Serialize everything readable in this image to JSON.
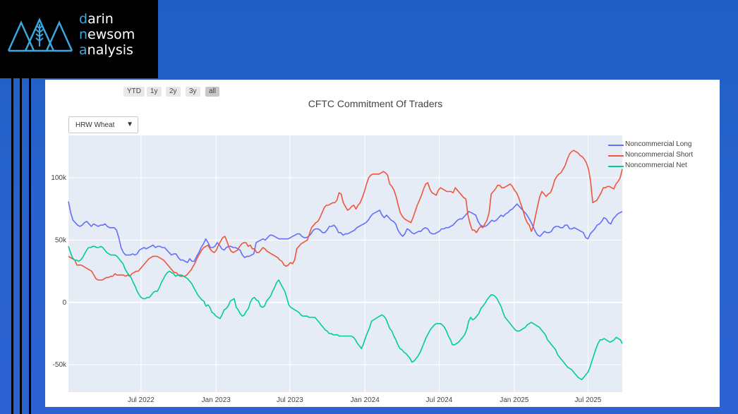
{
  "logo": {
    "line1_hl": "d",
    "line1": "arin",
    "line2_hl": "n",
    "line2": "ewsom",
    "line3_hl": "a",
    "line3": "nalysis"
  },
  "range_buttons": [
    "YTD",
    "1y",
    "2y",
    "3y",
    "all"
  ],
  "active_range": "all",
  "dropdown": {
    "selected": "HRW Wheat",
    "arrow": "▼"
  },
  "colors": {
    "long": "#636efa",
    "short": "#ef553b",
    "net": "#00cc96",
    "plot_bg": "#e5ecf6",
    "grid": "#ffffff"
  },
  "chart_data": {
    "type": "line",
    "title": "CFTC Commitment Of Traders",
    "x_tick_labels": [
      "Jul 2022",
      "Jan 2023",
      "Jul 2023",
      "Jan 2024",
      "Jul 2024",
      "Jan 2025",
      "Jul 2025"
    ],
    "y_tick_labels": [
      "100k",
      "50k",
      "0",
      "-50k"
    ],
    "y_ticks": [
      100000,
      50000,
      0,
      -50000
    ],
    "ylim": [
      -72000,
      134000
    ],
    "x_start": "2022-01-04",
    "x_end": "2025-09-23",
    "series": [
      {
        "name": "Noncommercial Long",
        "color": "#636efa",
        "values": [
          81000,
          72000,
          66000,
          64000,
          62000,
          61000,
          62000,
          64000,
          65000,
          63000,
          61000,
          63000,
          62000,
          61000,
          62000,
          62000,
          63000,
          61000,
          60000,
          60000,
          60000,
          58000,
          52000,
          44000,
          40000,
          38000,
          38000,
          38000,
          39000,
          38000,
          39000,
          42000,
          43000,
          44000,
          43000,
          44000,
          45000,
          46000,
          44000,
          45000,
          45000,
          44000,
          44000,
          42000,
          40000,
          38000,
          39000,
          39000,
          36000,
          34000,
          34000,
          33000,
          32000,
          35000,
          33000,
          33000,
          37000,
          40000,
          44000,
          47000,
          51000,
          48000,
          44000,
          44000,
          45000,
          48000,
          46000,
          43000,
          42000,
          44000,
          45000,
          45000,
          44000,
          44000,
          43000,
          42000,
          38000,
          36000,
          37000,
          37000,
          38000,
          39000,
          48000,
          49000,
          50000,
          51000,
          50000,
          52000,
          54000,
          54000,
          53000,
          52000,
          51000,
          51000,
          51000,
          51000,
          51000,
          52000,
          53000,
          54000,
          55000,
          55000,
          53000,
          52000,
          52000,
          53000,
          55000,
          58000,
          59000,
          59000,
          58000,
          56000,
          56000,
          58000,
          61000,
          61000,
          62000,
          60000,
          56000,
          56000,
          54000,
          55000,
          55000,
          56000,
          57000,
          58000,
          60000,
          61000,
          62000,
          63000,
          64000,
          66000,
          69000,
          71000,
          72000,
          73000,
          74000,
          70000,
          68000,
          70000,
          68000,
          66000,
          65000,
          63000,
          58000,
          55000,
          53000,
          55000,
          59000,
          58000,
          56000,
          55000,
          56000,
          57000,
          57000,
          59000,
          60000,
          59000,
          56000,
          55000,
          55000,
          56000,
          57000,
          59000,
          59000,
          60000,
          60000,
          61000,
          62000,
          64000,
          66000,
          67000,
          67000,
          69000,
          71000,
          73000,
          72000,
          71000,
          70000,
          65000,
          62000,
          61000,
          61000,
          62000,
          64000,
          66000,
          65000,
          66000,
          68000,
          70000,
          69000,
          71000,
          72000,
          74000,
          75000,
          77000,
          79000,
          77000,
          75000,
          73000,
          71000,
          68000,
          65000,
          61000,
          57000,
          54000,
          53000,
          55000,
          57000,
          56000,
          56000,
          57000,
          60000,
          61000,
          61000,
          60000,
          60000,
          62000,
          62000,
          59000,
          59000,
          60000,
          59000,
          58000,
          57000,
          56000,
          52000,
          51000,
          55000,
          57000,
          59000,
          62000,
          63000,
          65000,
          68000,
          67000,
          64000,
          63000,
          67000,
          69000,
          71000,
          72000,
          73000
        ]
      },
      {
        "name": "Noncommercial Short",
        "color": "#ef553b",
        "values": [
          37000,
          36000,
          35000,
          34000,
          30000,
          30000,
          30000,
          29000,
          28000,
          27000,
          26000,
          25000,
          22000,
          19000,
          18000,
          18000,
          18000,
          19000,
          20000,
          20000,
          21000,
          21000,
          23000,
          22000,
          22000,
          22000,
          22000,
          21000,
          22000,
          21000,
          23000,
          24000,
          25000,
          25000,
          27000,
          29000,
          31000,
          33000,
          35000,
          36000,
          37000,
          37000,
          37000,
          36000,
          35000,
          34000,
          32000,
          30000,
          28000,
          26000,
          24000,
          24000,
          22000,
          21000,
          21000,
          21000,
          22000,
          24000,
          26000,
          29000,
          32000,
          36000,
          39000,
          42000,
          44000,
          45000,
          46000,
          43000,
          41000,
          40000,
          42000,
          46000,
          49000,
          52000,
          53000,
          49000,
          44000,
          41000,
          40000,
          41000,
          42000,
          45000,
          47000,
          48000,
          48000,
          45000,
          46000,
          43000,
          43000,
          40000,
          40000,
          42000,
          44000,
          43000,
          41000,
          40000,
          39000,
          38000,
          37000,
          36000,
          34000,
          33000,
          30000,
          29000,
          30000,
          32000,
          31000,
          34000,
          43000,
          45000,
          47000,
          48000,
          49000,
          50000,
          55000,
          60000,
          62000,
          64000,
          65000,
          68000,
          72000,
          76000,
          78000,
          78000,
          79000,
          80000,
          80000,
          82000,
          88000,
          87000,
          80000,
          77000,
          74000,
          75000,
          77000,
          78000,
          75000,
          78000,
          80000,
          84000,
          89000,
          95000,
          100000,
          102000,
          103000,
          103000,
          103000,
          103000,
          104000,
          105000,
          104000,
          102000,
          95000,
          93000,
          90000,
          85000,
          78000,
          72000,
          69000,
          67000,
          66000,
          65000,
          64000,
          68000,
          73000,
          78000,
          82000,
          86000,
          91000,
          95000,
          96000,
          91000,
          88000,
          87000,
          86000,
          90000,
          92000,
          91000,
          90000,
          89000,
          89000,
          89000,
          88000,
          92000,
          90000,
          88000,
          86000,
          84000,
          83000,
          70000,
          63000,
          58000,
          58000,
          56000,
          59000,
          61000,
          60000,
          63000,
          66000,
          72000,
          87000,
          89000,
          91000,
          94000,
          94000,
          92000,
          92000,
          93000,
          94000,
          95000,
          93000,
          90000,
          88000,
          84000,
          79000,
          74000,
          68000,
          64000,
          62000,
          57000,
          62000,
          70000,
          78000,
          85000,
          89000,
          87000,
          85000,
          87000,
          88000,
          92000,
          98000,
          101000,
          103000,
          104000,
          107000,
          110000,
          115000,
          119000,
          121000,
          122000,
          121000,
          120000,
          118000,
          117000,
          115000,
          112000,
          107000,
          97000,
          80000,
          81000,
          82000,
          85000,
          88000,
          92000,
          92000,
          93000,
          93000,
          92000,
          91000,
          95000,
          97000,
          100000,
          107000
        ]
      },
      {
        "name": "Noncommercial Net",
        "color": "#00cc96",
        "values": [
          45000,
          40000,
          36000,
          34000,
          34000,
          33000,
          34000,
          36000,
          39000,
          42000,
          44000,
          44000,
          45000,
          45000,
          44000,
          44000,
          45000,
          44000,
          42000,
          40000,
          39000,
          38000,
          38000,
          38000,
          37000,
          35000,
          33000,
          31000,
          27000,
          24000,
          22000,
          20000,
          16000,
          13000,
          9000,
          6000,
          4000,
          3000,
          3000,
          4000,
          4000,
          6000,
          8000,
          9000,
          9000,
          12000,
          16000,
          19000,
          22000,
          24000,
          25000,
          24000,
          23000,
          21000,
          22000,
          22000,
          22000,
          21000,
          20000,
          19000,
          17000,
          15000,
          12000,
          9000,
          6000,
          4000,
          2000,
          1000,
          -3000,
          -2000,
          -4000,
          -8000,
          -9000,
          -11000,
          -12000,
          -13000,
          -10000,
          -6000,
          -5000,
          -3000,
          1000,
          2000,
          3000,
          -4000,
          -6000,
          -9000,
          -11000,
          -10000,
          -7000,
          -5000,
          0,
          3000,
          4000,
          2000,
          1000,
          -3000,
          -4000,
          -3000,
          1000,
          3000,
          5000,
          9000,
          12000,
          16000,
          18000,
          15000,
          12000,
          9000,
          4000,
          -2000,
          -4000,
          -5000,
          -6000,
          -7000,
          -8000,
          -10000,
          -11000,
          -11000,
          -11000,
          -12000,
          -12000,
          -12000,
          -12000,
          -14000,
          -16000,
          -18000,
          -20000,
          -22000,
          -23000,
          -25000,
          -25000,
          -26000,
          -26000,
          -26000,
          -27000,
          -27000,
          -27000,
          -27000,
          -27000,
          -27000,
          -27000,
          -28000,
          -30000,
          -33000,
          -35000,
          -37000,
          -33000,
          -28000,
          -24000,
          -20000,
          -15000,
          -14000,
          -13000,
          -12000,
          -11000,
          -10000,
          -11000,
          -13000,
          -17000,
          -21000,
          -23000,
          -27000,
          -30000,
          -34000,
          -37000,
          -38000,
          -40000,
          -41000,
          -43000,
          -45000,
          -48000,
          -47000,
          -45000,
          -43000,
          -40000,
          -36000,
          -32000,
          -28000,
          -25000,
          -22000,
          -20000,
          -18000,
          -17000,
          -17000,
          -17000,
          -18000,
          -20000,
          -23000,
          -27000,
          -30000,
          -34000,
          -34000,
          -33000,
          -32000,
          -30000,
          -28000,
          -26000,
          -22000,
          -15000,
          -12000,
          -14000,
          -13000,
          -11000,
          -9000,
          -5000,
          -3000,
          -1000,
          2000,
          4000,
          6000,
          6000,
          5000,
          3000,
          0,
          -3000,
          -8000,
          -12000,
          -14000,
          -16000,
          -18000,
          -20000,
          -22000,
          -23000,
          -23000,
          -22000,
          -21000,
          -20000,
          -18000,
          -17000,
          -16000,
          -17000,
          -18000,
          -19000,
          -20000,
          -22000,
          -24000,
          -26000,
          -30000,
          -32000,
          -34000,
          -36000,
          -38000,
          -42000,
          -44000,
          -46000,
          -48000,
          -50000,
          -52000,
          -53000,
          -54000,
          -56000,
          -58000,
          -60000,
          -61000,
          -62000,
          -60000,
          -58000,
          -56000,
          -52000,
          -47000,
          -42000,
          -37000,
          -33000,
          -30000,
          -30000,
          -29000,
          -30000,
          -31000,
          -32000,
          -31000,
          -30000,
          -28000,
          -29000,
          -30000,
          -33000
        ]
      }
    ],
    "grid": true,
    "legend_position": "right-top"
  }
}
